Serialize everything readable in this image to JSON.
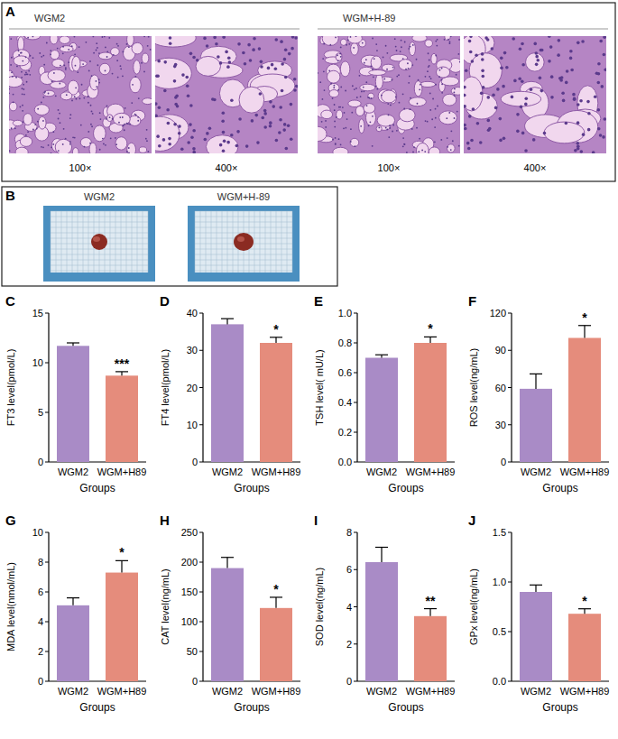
{
  "panels": {
    "A": {
      "letter": "A",
      "groups": [
        {
          "title": "WGM2",
          "magnifications": [
            "100×",
            "400×"
          ]
        },
        {
          "title": "WGM+H-89",
          "magnifications": [
            "100×",
            "400×"
          ]
        }
      ]
    },
    "B": {
      "letter": "B",
      "groups": [
        "WGM2",
        "WGM+H-89"
      ]
    }
  },
  "chart_data": [
    {
      "panel": "C",
      "type": "bar",
      "categories": [
        "WGM2",
        "WGM+H89"
      ],
      "values": [
        11.7,
        8.7
      ],
      "errors": [
        0.3,
        0.4
      ],
      "colors": [
        "#a98bc6",
        "#e58c7c"
      ],
      "ylim": [
        0,
        15
      ],
      "yticks": [
        0,
        5,
        10,
        15
      ],
      "y_label": "FT3 level(pmol/L)",
      "x_label": "Groups",
      "annotation": "***",
      "grid": false
    },
    {
      "panel": "D",
      "type": "bar",
      "categories": [
        "WGM2",
        "WGM+H89"
      ],
      "values": [
        37,
        32
      ],
      "errors": [
        1.5,
        1.5
      ],
      "colors": [
        "#a98bc6",
        "#e58c7c"
      ],
      "ylim": [
        0,
        40
      ],
      "yticks": [
        0,
        10,
        20,
        30,
        40
      ],
      "y_label": "FT4 level(pmol/L)",
      "x_label": "Groups",
      "annotation": "*",
      "grid": false
    },
    {
      "panel": "E",
      "type": "bar",
      "categories": [
        "WGM2",
        "WGM+H89"
      ],
      "values": [
        0.7,
        0.8
      ],
      "errors": [
        0.02,
        0.04
      ],
      "colors": [
        "#a98bc6",
        "#e58c7c"
      ],
      "ylim": [
        0,
        1
      ],
      "yticks": [
        {
          "value": 0,
          "label": "0.0"
        },
        0.2,
        0.4,
        0.6,
        0.8,
        {
          "value": 1,
          "label": "1.0"
        }
      ],
      "y_label": "TSH level( mU/L)",
      "x_label": "Groups",
      "annotation": "*",
      "grid": false
    },
    {
      "panel": "F",
      "type": "bar",
      "categories": [
        "WGM2",
        "WGM+H89"
      ],
      "values": [
        59,
        100
      ],
      "errors": [
        12,
        10
      ],
      "colors": [
        "#a98bc6",
        "#e58c7c"
      ],
      "ylim": [
        0,
        120
      ],
      "yticks": [
        0,
        30,
        60,
        90,
        120
      ],
      "y_label": "ROS level(ng/mL)",
      "x_label": "Groups",
      "annotation": "*",
      "grid": false
    },
    {
      "panel": "G",
      "type": "bar",
      "categories": [
        "WGM2",
        "WGM+H89"
      ],
      "values": [
        5.1,
        7.3
      ],
      "errors": [
        0.5,
        0.8
      ],
      "colors": [
        "#a98bc6",
        "#e58c7c"
      ],
      "ylim": [
        0,
        10
      ],
      "yticks": [
        0,
        2,
        4,
        6,
        8,
        10
      ],
      "y_label": "MDA level(nmol/mL)",
      "x_label": "Groups",
      "annotation": "*",
      "grid": false
    },
    {
      "panel": "H",
      "type": "bar",
      "categories": [
        "WGM2",
        "WGM+H89"
      ],
      "values": [
        190,
        123
      ],
      "errors": [
        18,
        18
      ],
      "colors": [
        "#a98bc6",
        "#e58c7c"
      ],
      "ylim": [
        0,
        250
      ],
      "yticks": [
        0,
        50,
        100,
        150,
        200,
        250
      ],
      "y_label": "CAT level(ng/mL)",
      "x_label": "Groups",
      "annotation": "*",
      "grid": false
    },
    {
      "panel": "I",
      "type": "bar",
      "categories": [
        "WGM2",
        "WGM+H89"
      ],
      "values": [
        6.4,
        3.5
      ],
      "errors": [
        0.8,
        0.4
      ],
      "colors": [
        "#a98bc6",
        "#e58c7c"
      ],
      "ylim": [
        0,
        8
      ],
      "yticks": [
        0,
        2,
        4,
        6,
        8
      ],
      "y_label": "SOD level(ng/mL)",
      "x_label": "Groups",
      "annotation": "**",
      "grid": false
    },
    {
      "panel": "J",
      "type": "bar",
      "categories": [
        "WGM2",
        "WGM+H89"
      ],
      "values": [
        0.9,
        0.68
      ],
      "errors": [
        0.07,
        0.05
      ],
      "colors": [
        "#a98bc6",
        "#e58c7c"
      ],
      "ylim": [
        0,
        1.5
      ],
      "yticks": [
        {
          "value": 0,
          "label": "0.0"
        },
        {
          "value": 0.5,
          "label": "0.5"
        },
        {
          "value": 1,
          "label": "1.0"
        },
        1.5
      ],
      "y_label": "GPx level(ng/mL)",
      "x_label": "Groups",
      "annotation": "*",
      "grid": false
    }
  ]
}
